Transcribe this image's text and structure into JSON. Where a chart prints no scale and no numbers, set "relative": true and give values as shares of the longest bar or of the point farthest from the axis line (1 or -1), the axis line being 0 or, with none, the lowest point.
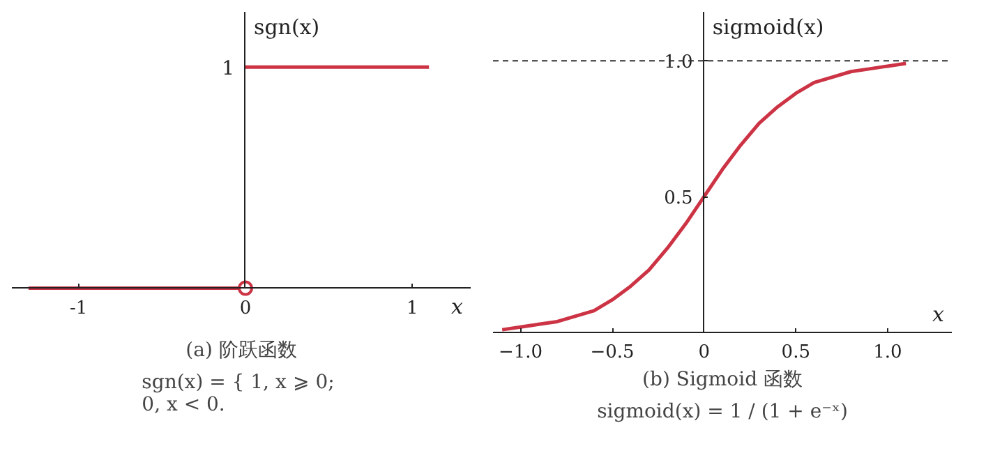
{
  "chart_data": [
    {
      "type": "line",
      "title": "(a) 阶跃函数",
      "xlabel": "x",
      "ylabel": "sgn(x)",
      "relative": true,
      "annotations": [
        "sgn(x) = { 1,  x ⩾ 0;\n              0,  x < 0.",
        {
          "text": "1",
          "x": 0,
          "y": 1
        }
      ],
      "xlim": [
        -1.4,
        1.35
      ],
      "xticks": [
        {
          "value": -1,
          "label": "-1"
        },
        0,
        1
      ],
      "series": [
        {
          "color": "#cc3344",
          "x": [
            -1.3,
            0,
            null,
            0,
            1.1
          ],
          "values": [
            0,
            0,
            null,
            1,
            1
          ]
        },
        {
          "type": "scatter",
          "marker": "circle",
          "color": "#cc3344",
          "x": [
            0
          ],
          "values": [
            0
          ]
        }
      ]
    },
    {
      "type": "line",
      "title": "(b) Sigmoid 函数",
      "xlabel": "x",
      "ylabel": "sigmoid(x)",
      "annotations": [
        "sigmoid(x) = 1 / (1 + e⁻ˣ)"
      ],
      "xlim": [
        -1.15,
        1.35
      ],
      "ylim": [
        0,
        1.18
      ],
      "xticks": [
        {
          "value": -1,
          "label": "−1.0"
        },
        {
          "value": -0.5,
          "label": "−0.5"
        },
        0,
        0.5,
        {
          "value": 1,
          "label": "1.0"
        }
      ],
      "yticks": [
        {
          "value": 0.5,
          "label": "0.5"
        },
        {
          "value": 1,
          "label": "1.0"
        }
      ],
      "ref_lines": [
        {
          "axis": "y",
          "value": 1,
          "label": null,
          "color": "#333333",
          "line_style": "dashed"
        }
      ],
      "series": [
        {
          "color": "#cc3344",
          "x": [
            -1.1,
            -1.0,
            -0.9,
            -0.8,
            -0.7,
            -0.6,
            -0.5,
            -0.4,
            -0.3,
            -0.2,
            -0.1,
            0,
            0.1,
            0.2,
            0.3,
            0.4,
            0.5,
            0.6,
            0.7,
            0.8,
            0.9,
            1.0,
            1.1
          ],
          "values": [
            0.01,
            0.02,
            0.03,
            0.04,
            0.06,
            0.08,
            0.12,
            0.17,
            0.23,
            0.31,
            0.4,
            0.5,
            0.6,
            0.69,
            0.77,
            0.83,
            0.88,
            0.92,
            0.94,
            0.96,
            0.97,
            0.98,
            0.99
          ]
        }
      ]
    }
  ]
}
